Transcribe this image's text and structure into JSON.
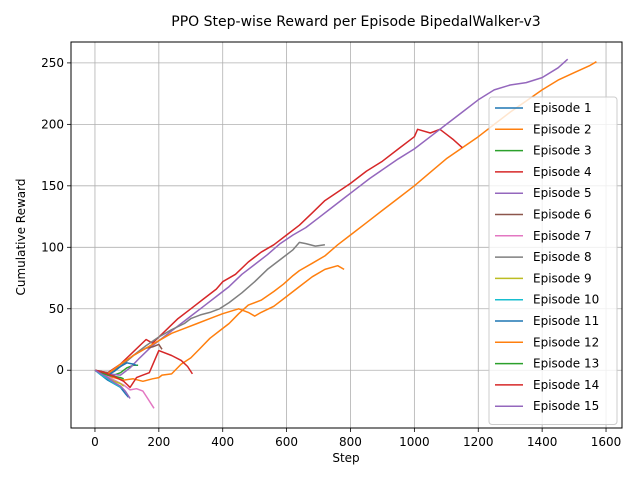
{
  "chart_data": {
    "type": "line",
    "title": "PPO Step-wise Reward per Episode BipedalWalker-v3",
    "xlabel": "Step",
    "ylabel": "Cumulative Reward",
    "xlim": [
      -75,
      1650
    ],
    "ylim": [
      -47,
      267
    ],
    "xticks": [
      0,
      200,
      400,
      600,
      800,
      1000,
      1200,
      1400,
      1600
    ],
    "yticks": [
      0,
      50,
      100,
      150,
      200,
      250
    ],
    "grid": true,
    "legend": "right",
    "series": [
      {
        "name": "Episode 1",
        "color": "#1f77b4",
        "points": [
          [
            0,
            0
          ],
          [
            20,
            -4
          ],
          [
            40,
            -8
          ],
          [
            60,
            -11
          ],
          [
            80,
            -14
          ],
          [
            95,
            -19
          ],
          [
            105,
            -22
          ]
        ]
      },
      {
        "name": "Episode 2",
        "color": "#ff7f0e",
        "points": [
          [
            0,
            0
          ],
          [
            30,
            -4
          ],
          [
            60,
            -6
          ],
          [
            90,
            -8
          ],
          [
            120,
            -7
          ],
          [
            150,
            -9
          ],
          [
            180,
            -7
          ],
          [
            200,
            -6
          ],
          [
            210,
            -4
          ],
          [
            240,
            -3
          ],
          [
            270,
            5
          ],
          [
            300,
            10
          ],
          [
            330,
            18
          ],
          [
            360,
            26
          ],
          [
            390,
            32
          ],
          [
            420,
            38
          ],
          [
            450,
            46
          ],
          [
            480,
            53
          ],
          [
            520,
            57
          ],
          [
            560,
            64
          ],
          [
            590,
            70
          ],
          [
            620,
            77
          ],
          [
            640,
            81
          ],
          [
            680,
            87
          ],
          [
            720,
            93
          ],
          [
            760,
            102
          ],
          [
            800,
            110
          ],
          [
            850,
            120
          ],
          [
            900,
            130
          ],
          [
            950,
            140
          ],
          [
            1000,
            150
          ],
          [
            1050,
            161
          ],
          [
            1100,
            172
          ],
          [
            1150,
            181
          ],
          [
            1200,
            190
          ],
          [
            1250,
            200
          ],
          [
            1300,
            210
          ],
          [
            1350,
            219
          ],
          [
            1400,
            228
          ],
          [
            1450,
            236
          ],
          [
            1500,
            242
          ],
          [
            1550,
            248
          ],
          [
            1570,
            251
          ]
        ]
      },
      {
        "name": "Episode 3",
        "color": "#2ca02c",
        "points": [
          [
            0,
            0
          ],
          [
            20,
            -3
          ],
          [
            40,
            -5
          ],
          [
            60,
            -4
          ],
          [
            80,
            -2
          ],
          [
            100,
            2
          ],
          [
            120,
            4
          ],
          [
            135,
            4
          ]
        ]
      },
      {
        "name": "Episode 4",
        "color": "#d62728",
        "points": [
          [
            0,
            0
          ],
          [
            40,
            -2
          ],
          [
            80,
            5
          ],
          [
            120,
            15
          ],
          [
            160,
            25
          ],
          [
            180,
            22
          ],
          [
            220,
            32
          ],
          [
            260,
            42
          ],
          [
            300,
            50
          ],
          [
            340,
            58
          ],
          [
            380,
            66
          ],
          [
            400,
            72
          ],
          [
            440,
            78
          ],
          [
            480,
            88
          ],
          [
            520,
            96
          ],
          [
            560,
            102
          ],
          [
            600,
            110
          ],
          [
            640,
            118
          ],
          [
            680,
            128
          ],
          [
            720,
            138
          ],
          [
            760,
            145
          ],
          [
            800,
            152
          ],
          [
            850,
            162
          ],
          [
            900,
            170
          ],
          [
            950,
            180
          ],
          [
            1000,
            190
          ],
          [
            1010,
            196
          ],
          [
            1050,
            193
          ],
          [
            1080,
            196
          ],
          [
            1100,
            192
          ],
          [
            1120,
            188
          ],
          [
            1150,
            181
          ]
        ]
      },
      {
        "name": "Episode 5",
        "color": "#9467bd",
        "points": [
          [
            0,
            0
          ],
          [
            40,
            -3
          ],
          [
            80,
            -4
          ],
          [
            110,
            2
          ],
          [
            140,
            10
          ],
          [
            180,
            20
          ],
          [
            220,
            28
          ],
          [
            260,
            36
          ],
          [
            300,
            44
          ],
          [
            340,
            52
          ],
          [
            380,
            60
          ],
          [
            420,
            68
          ],
          [
            460,
            78
          ],
          [
            500,
            86
          ],
          [
            540,
            94
          ],
          [
            580,
            103
          ],
          [
            620,
            110
          ],
          [
            660,
            116
          ],
          [
            700,
            124
          ],
          [
            740,
            132
          ],
          [
            780,
            140
          ],
          [
            820,
            148
          ],
          [
            860,
            156
          ],
          [
            900,
            163
          ],
          [
            950,
            172
          ],
          [
            1000,
            180
          ],
          [
            1050,
            190
          ],
          [
            1100,
            200
          ],
          [
            1150,
            210
          ],
          [
            1200,
            220
          ],
          [
            1250,
            228
          ],
          [
            1300,
            232
          ],
          [
            1350,
            234
          ],
          [
            1400,
            238
          ],
          [
            1450,
            246
          ],
          [
            1480,
            253
          ]
        ]
      },
      {
        "name": "Episode 6",
        "color": "#8c564b",
        "points": [
          [
            0,
            0
          ],
          [
            40,
            -2
          ],
          [
            80,
            3
          ],
          [
            120,
            12
          ],
          [
            160,
            18
          ],
          [
            180,
            19
          ],
          [
            200,
            21
          ],
          [
            210,
            17
          ]
        ]
      },
      {
        "name": "Episode 7",
        "color": "#e377c2",
        "points": [
          [
            0,
            0
          ],
          [
            30,
            -3
          ],
          [
            60,
            -8
          ],
          [
            90,
            -12
          ],
          [
            110,
            -16
          ],
          [
            130,
            -15
          ],
          [
            150,
            -17
          ],
          [
            165,
            -23
          ],
          [
            185,
            -31
          ]
        ]
      },
      {
        "name": "Episode 8",
        "color": "#7f7f7f",
        "points": [
          [
            0,
            0
          ],
          [
            40,
            -3
          ],
          [
            80,
            3
          ],
          [
            120,
            12
          ],
          [
            160,
            20
          ],
          [
            200,
            27
          ],
          [
            240,
            33
          ],
          [
            280,
            38
          ],
          [
            300,
            42
          ],
          [
            330,
            45
          ],
          [
            360,
            47
          ],
          [
            390,
            50
          ],
          [
            420,
            55
          ],
          [
            460,
            63
          ],
          [
            500,
            72
          ],
          [
            540,
            82
          ],
          [
            580,
            90
          ],
          [
            620,
            98
          ],
          [
            640,
            104
          ],
          [
            660,
            103
          ],
          [
            690,
            101
          ],
          [
            720,
            102
          ]
        ]
      },
      {
        "name": "Episode 9",
        "color": "#bcbd22",
        "points": [
          [
            0,
            0
          ],
          [
            20,
            -3
          ],
          [
            40,
            -6
          ],
          [
            60,
            -9
          ],
          [
            80,
            -11
          ],
          [
            90,
            -13
          ]
        ]
      },
      {
        "name": "Episode 10",
        "color": "#17becf",
        "points": [
          [
            0,
            0
          ],
          [
            20,
            -4
          ],
          [
            40,
            -7
          ],
          [
            60,
            -11
          ],
          [
            75,
            -13
          ],
          [
            85,
            -15
          ]
        ]
      },
      {
        "name": "Episode 11",
        "color": "#1f77b4",
        "points": [
          [
            0,
            0
          ],
          [
            20,
            -2
          ],
          [
            40,
            -4
          ],
          [
            60,
            -1
          ],
          [
            80,
            3
          ],
          [
            100,
            6
          ],
          [
            120,
            5
          ],
          [
            130,
            4
          ]
        ]
      },
      {
        "name": "Episode 12",
        "color": "#ff7f0e",
        "points": [
          [
            0,
            0
          ],
          [
            40,
            -3
          ],
          [
            80,
            5
          ],
          [
            120,
            12
          ],
          [
            160,
            18
          ],
          [
            200,
            24
          ],
          [
            240,
            30
          ],
          [
            280,
            34
          ],
          [
            320,
            38
          ],
          [
            360,
            42
          ],
          [
            400,
            46
          ],
          [
            450,
            50
          ],
          [
            480,
            47
          ],
          [
            500,
            44
          ],
          [
            520,
            47
          ],
          [
            560,
            52
          ],
          [
            600,
            60
          ],
          [
            640,
            68
          ],
          [
            680,
            76
          ],
          [
            720,
            82
          ],
          [
            760,
            85
          ],
          [
            780,
            82
          ]
        ]
      },
      {
        "name": "Episode 13",
        "color": "#2ca02c",
        "points": [
          [
            0,
            0
          ],
          [
            20,
            -2
          ],
          [
            40,
            -4
          ],
          [
            60,
            -5
          ],
          [
            80,
            -6
          ],
          [
            90,
            -7
          ]
        ]
      },
      {
        "name": "Episode 14",
        "color": "#d62728",
        "points": [
          [
            0,
            0
          ],
          [
            30,
            -2
          ],
          [
            60,
            -5
          ],
          [
            90,
            -9
          ],
          [
            110,
            -14
          ],
          [
            130,
            -6
          ],
          [
            150,
            -4
          ],
          [
            170,
            -2
          ],
          [
            200,
            16
          ],
          [
            240,
            12
          ],
          [
            270,
            8
          ],
          [
            290,
            3
          ],
          [
            305,
            -3
          ]
        ]
      },
      {
        "name": "Episode 15",
        "color": "#9467bd",
        "points": [
          [
            0,
            0
          ],
          [
            20,
            -3
          ],
          [
            40,
            -6
          ],
          [
            60,
            -10
          ],
          [
            80,
            -13
          ],
          [
            95,
            -17
          ],
          [
            110,
            -23
          ]
        ]
      }
    ]
  }
}
